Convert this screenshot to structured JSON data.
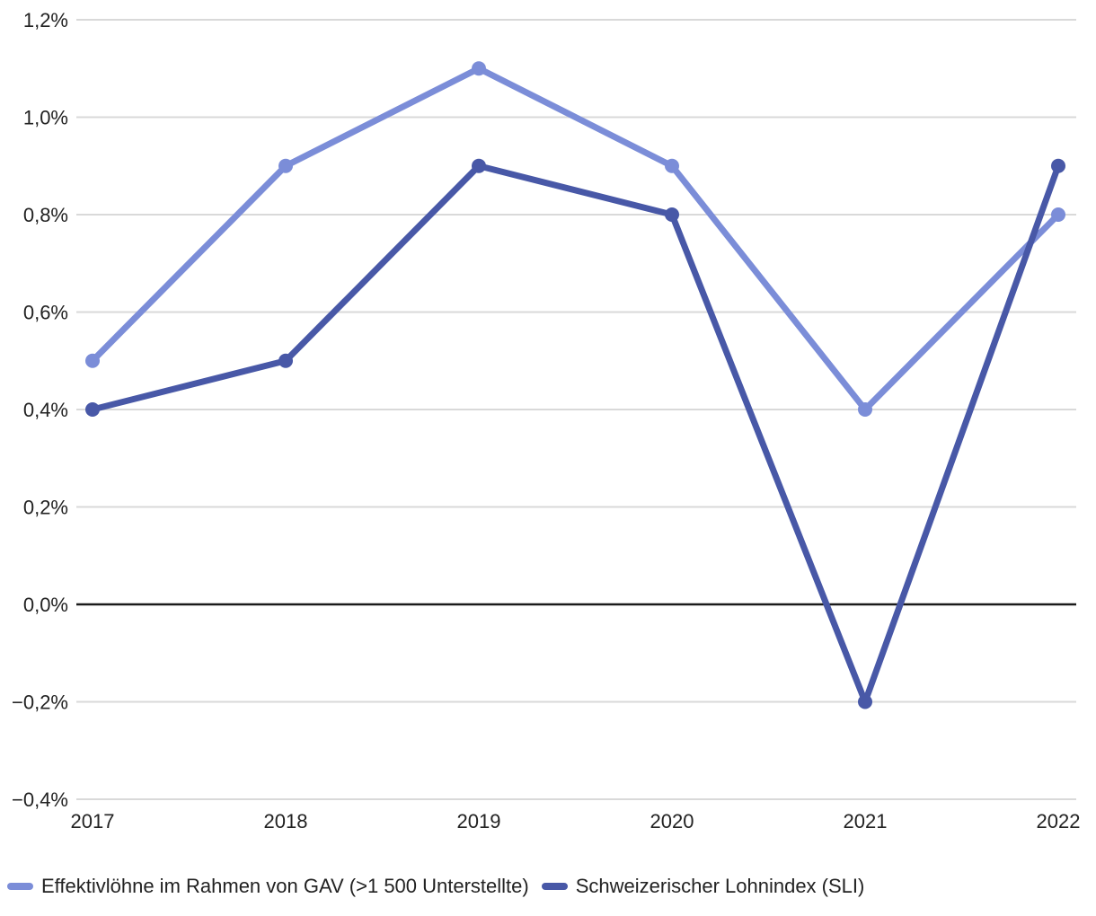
{
  "chart_data": {
    "type": "line",
    "x_labels": [
      "2017",
      "2018",
      "2019",
      "2020",
      "2021",
      "2022"
    ],
    "series": [
      {
        "name": "Effektivlöhne im Rahmen von GAV (>1 500 Unterstellte)",
        "color": "#7b8dd8",
        "values": [
          0.5,
          0.9,
          1.1,
          0.9,
          0.4,
          0.8
        ]
      },
      {
        "name": "Schweizerischer Lohnindex (SLI)",
        "color": "#4858a7",
        "values": [
          0.4,
          0.5,
          0.9,
          0.8,
          -0.2,
          0.9
        ]
      }
    ],
    "y_ticks": [
      {
        "label": "1,2%",
        "value": 1.2
      },
      {
        "label": "1,0%",
        "value": 1.0
      },
      {
        "label": "0,8%",
        "value": 0.8
      },
      {
        "label": "0,6%",
        "value": 0.6
      },
      {
        "label": "0,4%",
        "value": 0.4
      },
      {
        "label": "0,2%",
        "value": 0.2
      },
      {
        "label": "0,0%",
        "value": 0.0
      },
      {
        "label": "−0,2%",
        "value": -0.2
      },
      {
        "label": "−0,4%",
        "value": -0.4
      }
    ],
    "ylim": [
      -0.4,
      1.2
    ],
    "grid": true,
    "zero_line_value": 0.0,
    "legend_position": "bottom"
  },
  "legend": {
    "items": [
      {
        "label": "Effektivlöhne im Rahmen von GAV (>1 500 Unterstellte)",
        "color": "#7b8dd8"
      },
      {
        "label": "Schweizerischer Lohnindex (SLI)",
        "color": "#4858a7"
      }
    ]
  },
  "style_colors": {
    "gridline": "#d9d9d9",
    "zero_line": "#1a1a1a",
    "tick_text": "#222222",
    "background": "#ffffff"
  }
}
